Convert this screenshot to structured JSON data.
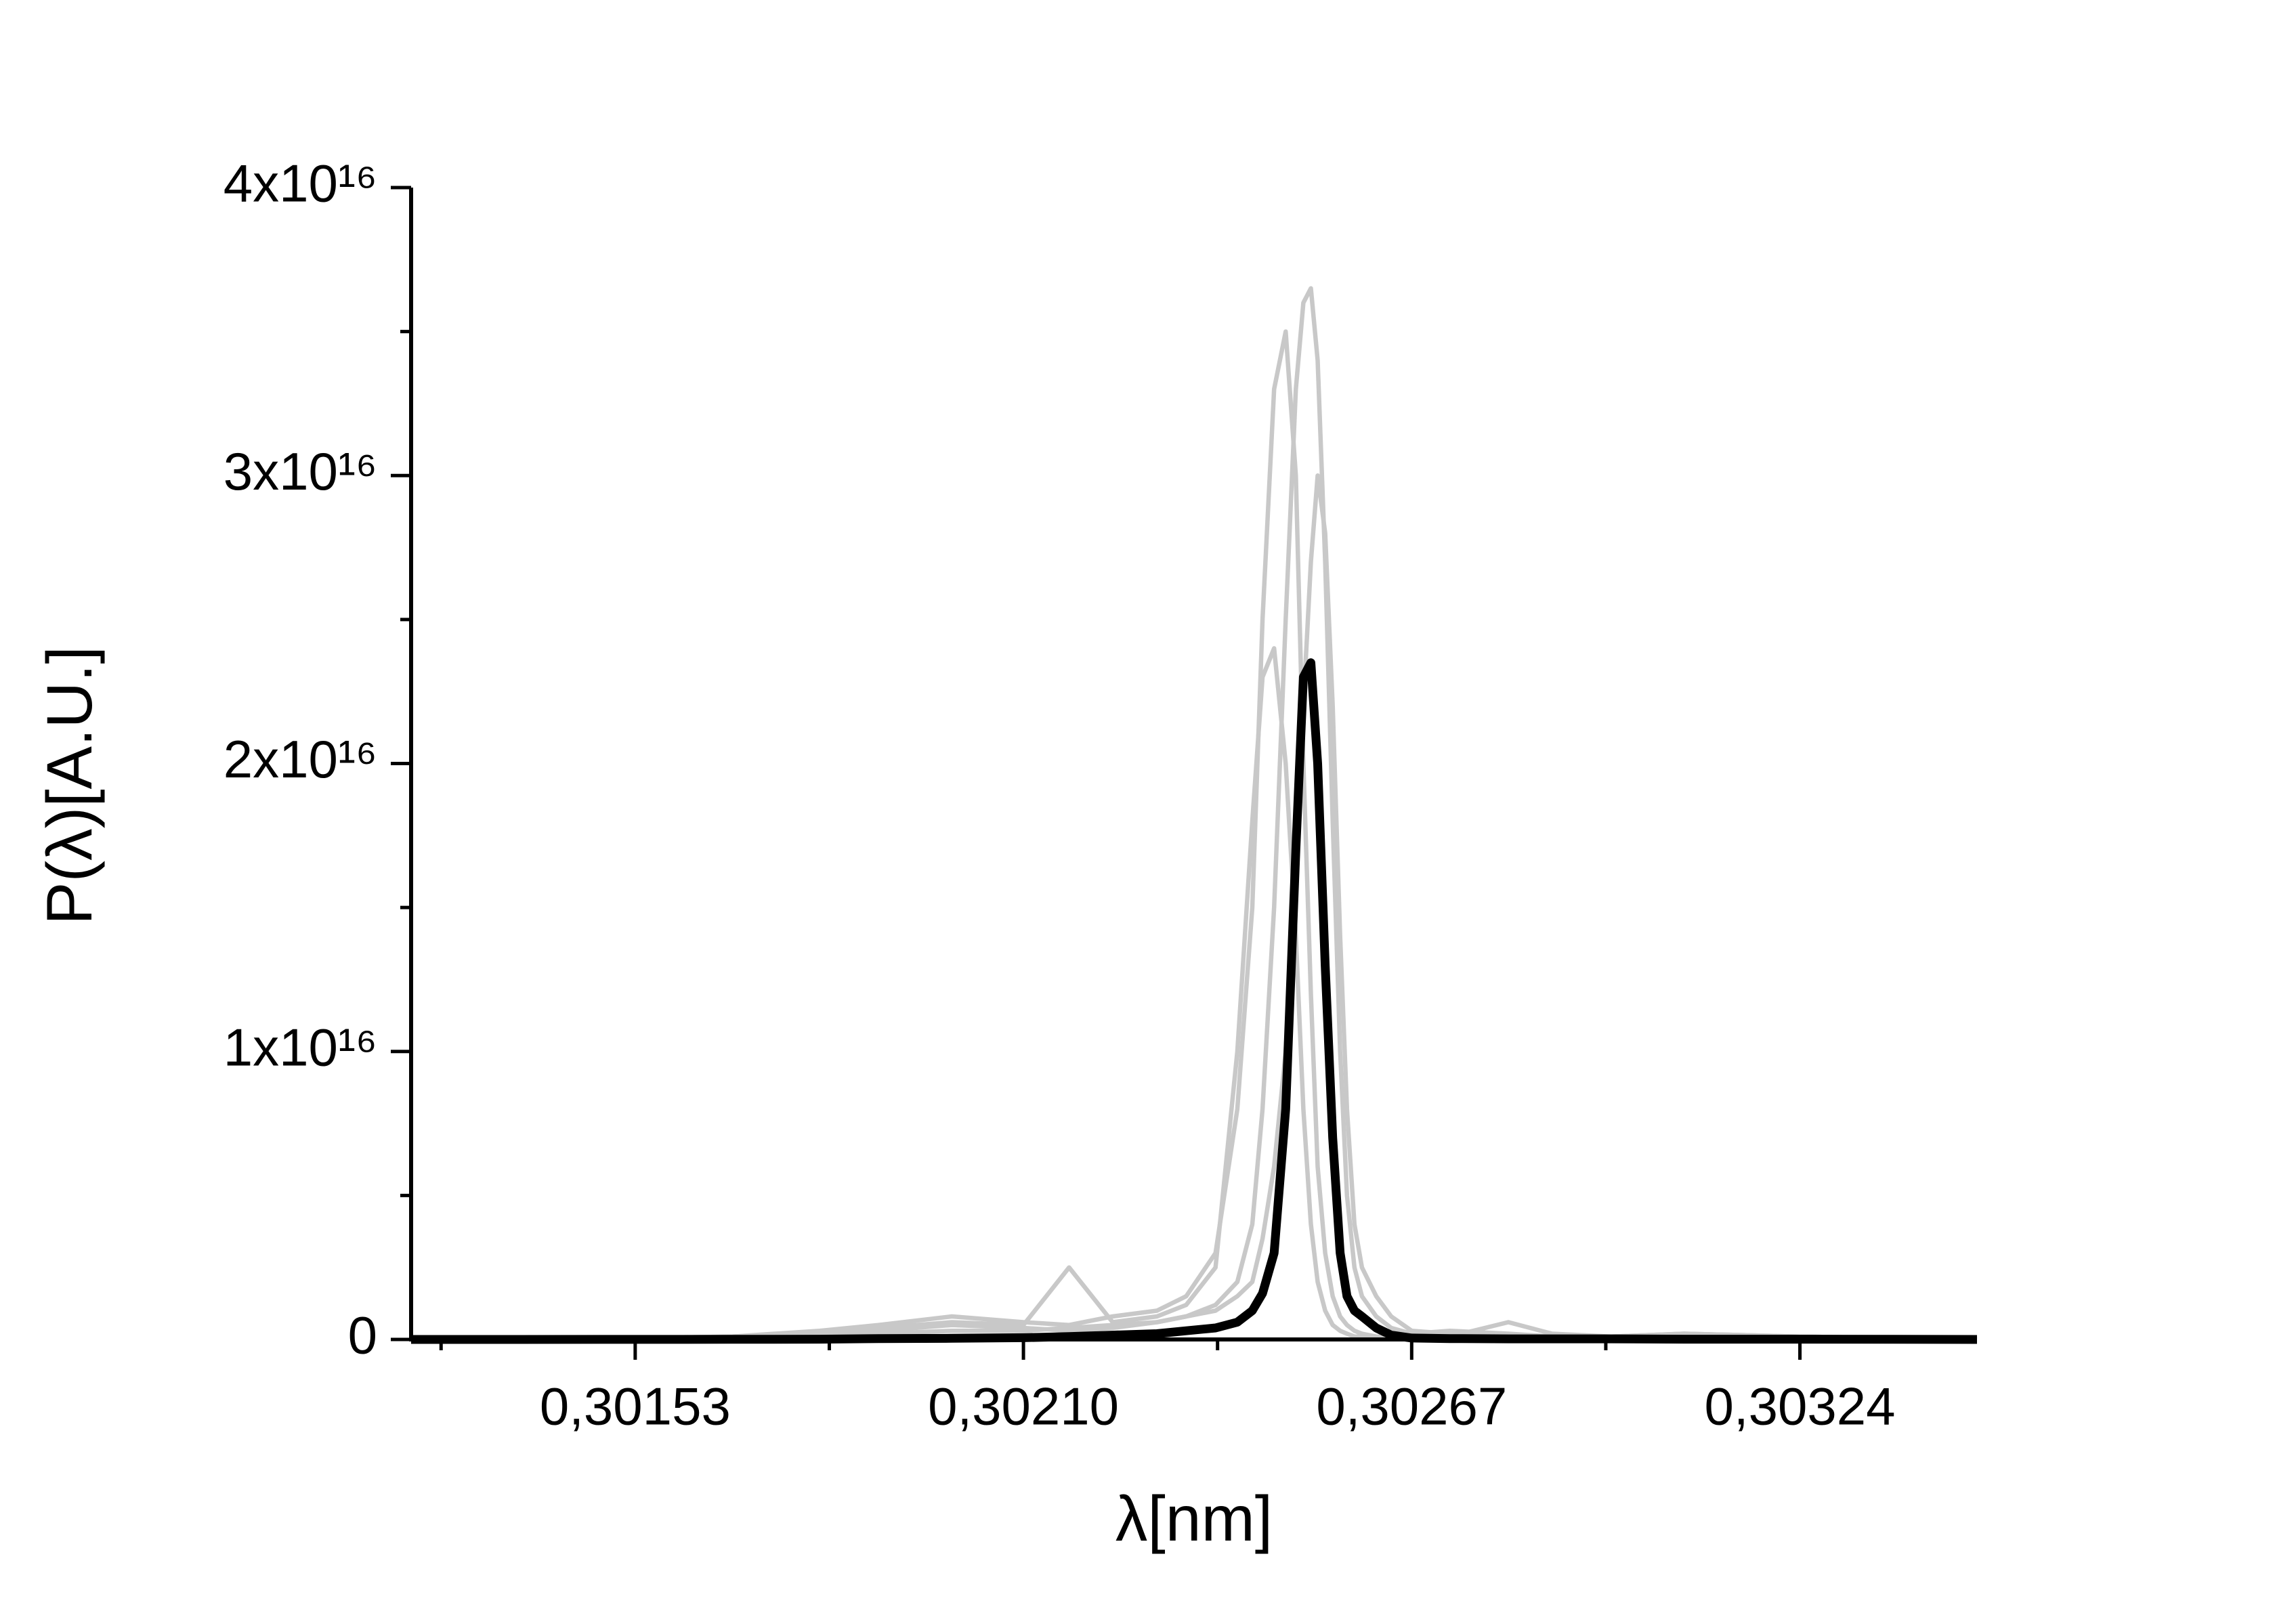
{
  "chart_data": {
    "type": "line",
    "x_label": "λ[nm]",
    "y_label": "P(λ)[A.U.]",
    "x": [
      0.301201,
      0.301349,
      0.30153,
      0.301672,
      0.301801,
      0.301887,
      0.301995,
      0.3021,
      0.302167,
      0.302231,
      0.302296,
      0.302339,
      0.302382,
      0.302414,
      0.302436,
      0.302451,
      0.302468,
      0.302485,
      0.3025,
      0.302511,
      0.302522,
      0.302532,
      0.302543,
      0.302554,
      0.302565,
      0.302575,
      0.302586,
      0.302597,
      0.302618,
      0.30264,
      0.30267,
      0.302726,
      0.302812,
      0.302876,
      0.302963,
      0.30307,
      0.30324,
      0.303371,
      0.3035
    ],
    "series": [
      {
        "color": "#c8c8c8",
        "values": [
          0,
          0,
          50000000000000.0,
          100000000000000.0,
          200000000000000.0,
          300000000000000.0,
          500000000000000.0,
          400000000000000.0,
          300000000000000.0,
          400000000000000.0,
          600000000000000.0,
          800000000000000.0,
          1200000000000000.0,
          2000000000000000.0,
          4000000000000000.0,
          8000000000000000.0,
          1.5e+16,
          2.5e+16,
          3.3e+16,
          3.6e+16,
          3.65e+16,
          3.4e+16,
          2.7e+16,
          1.8e+16,
          1e+16,
          5000000000000000.0,
          2500000000000000.0,
          1500000000000000.0,
          800000000000000.0,
          400000000000000.0,
          200000000000000.0,
          300000000000000.0,
          200000000000000.0,
          100000000000000.0,
          100000000000000.0,
          100000000000000.0,
          100000000000000.0,
          50000000000000.0,
          0
        ]
      },
      {
        "color": "#c8c8c8",
        "values": [
          0,
          0,
          50000000000000.0,
          100000000000000.0,
          300000000000000.0,
          500000000000000.0,
          800000000000000.0,
          600000000000000.0,
          500000000000000.0,
          800000000000000.0,
          1000000000000000.0,
          1500000000000000.0,
          3000000000000000.0,
          8000000000000000.0,
          1.5e+16,
          2.5e+16,
          3.3e+16,
          3.5e+16,
          3e+16,
          2e+16,
          1.2e+16,
          6000000000000000.0,
          3000000000000000.0,
          1500000000000000.0,
          800000000000000.0,
          500000000000000.0,
          300000000000000.0,
          200000000000000.0,
          100000000000000.0,
          100000000000000.0,
          50000000000000.0,
          100000000000000.0,
          600000000000000.0,
          200000000000000.0,
          100000000000000.0,
          200000000000000.0,
          100000000000000.0,
          50000000000000.0,
          0
        ]
      },
      {
        "color": "#c8c8c8",
        "values": [
          0,
          0,
          0,
          100000000000000.0,
          200000000000000.0,
          400000000000000.0,
          600000000000000.0,
          500000000000000.0,
          2500000000000000.0,
          600000000000000.0,
          800000000000000.0,
          1200000000000000.0,
          2500000000000000.0,
          1e+16,
          1.8e+16,
          2.3e+16,
          2.4e+16,
          2e+16,
          1.4e+16,
          8000000000000000.0,
          4000000000000000.0,
          2000000000000000.0,
          1000000000000000.0,
          500000000000000.0,
          300000000000000.0,
          200000000000000.0,
          100000000000000.0,
          100000000000000.0,
          100000000000000.0,
          50000000000000.0,
          50000000000000.0,
          200000000000000.0,
          100000000000000.0,
          100000000000000.0,
          100000000000000.0,
          100000000000000.0,
          100000000000000.0,
          50000000000000.0,
          0
        ]
      },
      {
        "color": "#c8c8c8",
        "values": [
          0,
          0,
          0,
          50000000000000.0,
          100000000000000.0,
          200000000000000.0,
          300000000000000.0,
          300000000000000.0,
          400000000000000.0,
          500000000000000.0,
          600000000000000.0,
          800000000000000.0,
          1000000000000000.0,
          1500000000000000.0,
          2000000000000000.0,
          3500000000000000.0,
          6000000000000000.0,
          1e+16,
          1.6e+16,
          2.2e+16,
          2.7e+16,
          3e+16,
          2.8e+16,
          2.2e+16,
          1.4e+16,
          8000000000000000.0,
          4000000000000000.0,
          2500000000000000.0,
          1500000000000000.0,
          800000000000000.0,
          300000000000000.0,
          200000000000000.0,
          100000000000000.0,
          100000000000000.0,
          100000000000000.0,
          200000000000000.0,
          100000000000000.0,
          50000000000000.0,
          0
        ]
      },
      {
        "color": "#000000",
        "values": [
          0,
          0,
          2000000000000.0,
          5000000000000.0,
          10000000000000.0,
          30000000000000.0,
          40000000000000.0,
          60000000000000.0,
          100000000000000.0,
          150000000000000.0,
          200000000000000.0,
          300000000000000.0,
          400000000000000.0,
          600000000000000.0,
          1000000000000000.0,
          1600000000000000.0,
          3000000000000000.0,
          8000000000000000.0,
          1.7e+16,
          2.3e+16,
          2.35e+16,
          2e+16,
          1.3e+16,
          7000000000000000.0,
          3000000000000000.0,
          1500000000000000.0,
          1000000000000000.0,
          800000000000000.0,
          400000000000000.0,
          150000000000000.0,
          50000000000000.0,
          30000000000000.0,
          20000000000000.0,
          20000000000000.0,
          20000000000000.0,
          10000000000000.0,
          10000000000000.0,
          5000000000000.0,
          0
        ]
      }
    ],
    "xlim": [
      0.301201,
      0.3035
    ],
    "xticks": [
      {
        "value": 0.30153,
        "label": "0,30153"
      },
      {
        "value": 0.3021,
        "label": "0,30210"
      },
      {
        "value": 0.30267,
        "label": "0,30267"
      },
      {
        "value": 0.30324,
        "label": "0,30324"
      }
    ],
    "ylim": [
      0,
      4e+16
    ],
    "yticks": [
      0,
      {
        "value": 1e+16,
        "label": "1x10¹⁶"
      },
      {
        "value": 2e+16,
        "label": "2x10¹⁶"
      },
      {
        "value": 3e+16,
        "label": "3x10¹⁶"
      },
      {
        "value": 4e+16,
        "label": "4x10¹⁶"
      }
    ],
    "grid": false
  }
}
